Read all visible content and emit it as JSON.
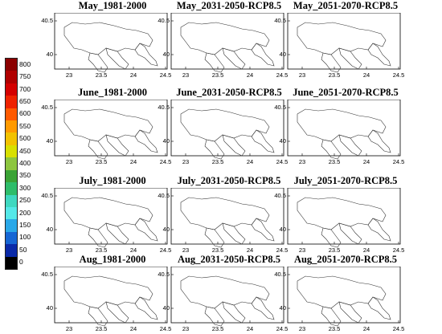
{
  "legend": {
    "labels": [
      "800",
      "750",
      "700",
      "650",
      "600",
      "550",
      "500",
      "450",
      "400",
      "350",
      "300",
      "250",
      "200",
      "150",
      "100",
      "50",
      "0"
    ],
    "colors": [
      "#8b0000",
      "#b00000",
      "#d40000",
      "#ee2200",
      "#ff5a00",
      "#ff9a00",
      "#f2c200",
      "#d8e000",
      "#8dc63f",
      "#3aa335",
      "#2ebd6a",
      "#3fd8c0",
      "#55e8e8",
      "#2aa8e8",
      "#1666d4",
      "#0a2aa8",
      "#000000"
    ]
  },
  "axes": {
    "x_ticks": [
      "23",
      "23.5",
      "24",
      "24.5"
    ],
    "y_ticks": [
      "40.5",
      "40"
    ]
  },
  "panels": [
    {
      "title": "May_1981-2000",
      "scheme": "green"
    },
    {
      "title": "May_2031-2050-RCP8.5",
      "scheme": "hot"
    },
    {
      "title": "May_2051-2070-RCP8.5",
      "scheme": "hot"
    },
    {
      "title": "June_1981-2000",
      "scheme": "cyan"
    },
    {
      "title": "June_2031-2050-RCP8.5",
      "scheme": "hot"
    },
    {
      "title": "June_2051-2070-RCP8.5",
      "scheme": "hot"
    },
    {
      "title": "July_1981-2000",
      "scheme": "orange"
    },
    {
      "title": "July_2031-2050-RCP8.5",
      "scheme": "hot"
    },
    {
      "title": "July_2051-2070-RCP8.5",
      "scheme": "hot"
    },
    {
      "title": "Aug_1981-2000",
      "scheme": "yellow"
    },
    {
      "title": "Aug_2031-2050-RCP8.5",
      "scheme": "hot"
    },
    {
      "title": "Aug_2051-2070-RCP8.5",
      "scheme": "hot"
    }
  ]
}
